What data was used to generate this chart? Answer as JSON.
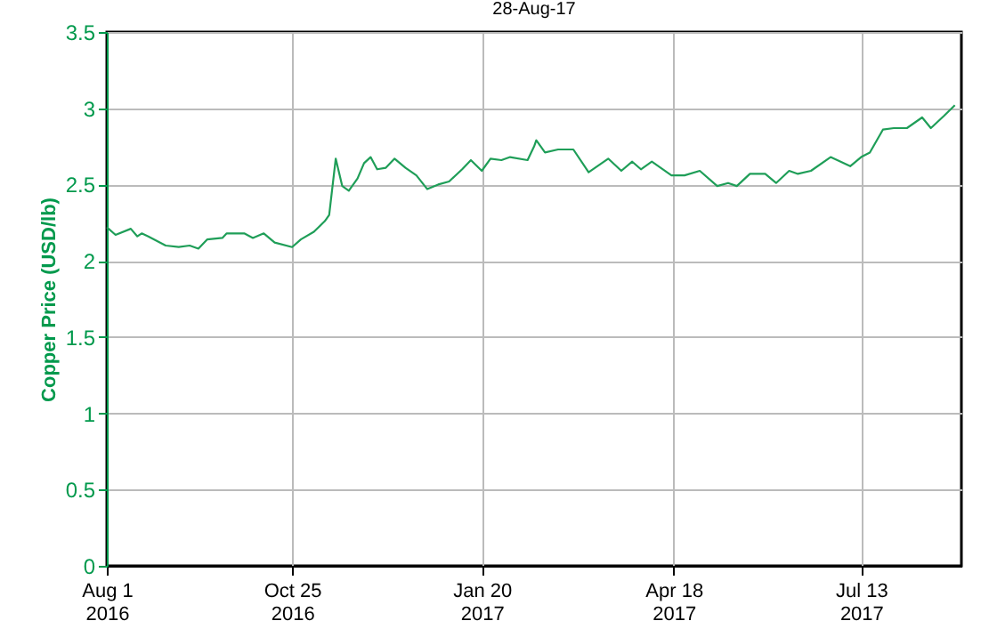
{
  "chart_data": {
    "type": "line",
    "title": "28-Aug-17",
    "ylabel": "Copper Price (USD/lb)",
    "x": [
      "2016-08-01",
      "2016-08-05",
      "2016-08-12",
      "2016-08-15",
      "2016-08-17",
      "2016-08-20",
      "2016-08-28",
      "2016-09-03",
      "2016-09-08",
      "2016-09-12",
      "2016-09-16",
      "2016-09-23",
      "2016-09-25",
      "2016-10-03",
      "2016-10-07",
      "2016-10-12",
      "2016-10-17",
      "2016-10-25",
      "2016-10-29",
      "2016-11-04",
      "2016-11-09",
      "2016-11-11",
      "2016-11-14",
      "2016-11-17",
      "2016-11-20",
      "2016-11-24",
      "2016-11-27",
      "2016-11-30",
      "2016-12-03",
      "2016-12-07",
      "2016-12-11",
      "2016-12-16",
      "2016-12-21",
      "2016-12-26",
      "2016-12-31",
      "2017-01-05",
      "2017-01-11",
      "2017-01-15",
      "2017-01-20",
      "2017-01-24",
      "2017-01-29",
      "2017-02-02",
      "2017-02-10",
      "2017-02-13",
      "2017-02-14",
      "2017-02-18",
      "2017-02-24",
      "2017-03-03",
      "2017-03-10",
      "2017-03-19",
      "2017-03-25",
      "2017-03-30",
      "2017-04-03",
      "2017-04-08",
      "2017-04-17",
      "2017-04-23",
      "2017-04-30",
      "2017-05-08",
      "2017-05-13",
      "2017-05-17",
      "2017-05-23",
      "2017-05-30",
      "2017-06-04",
      "2017-06-10",
      "2017-06-14",
      "2017-06-20",
      "2017-06-29",
      "2017-07-08",
      "2017-07-13",
      "2017-07-17",
      "2017-07-23",
      "2017-07-28",
      "2017-08-03",
      "2017-08-10",
      "2017-08-14",
      "2017-08-20",
      "2017-08-25"
    ],
    "series": [
      {
        "color": "#1f9e58",
        "values": [
          2.22,
          2.17,
          2.21,
          2.16,
          2.18,
          2.16,
          2.1,
          2.09,
          2.1,
          2.08,
          2.14,
          2.15,
          2.18,
          2.18,
          2.15,
          2.18,
          2.12,
          2.09,
          2.14,
          2.19,
          2.26,
          2.3,
          2.67,
          2.49,
          2.46,
          2.54,
          2.64,
          2.68,
          2.6,
          2.61,
          2.67,
          2.61,
          2.56,
          2.47,
          2.5,
          2.52,
          2.6,
          2.66,
          2.59,
          2.67,
          2.66,
          2.68,
          2.66,
          2.75,
          2.79,
          2.71,
          2.73,
          2.73,
          2.58,
          2.67,
          2.59,
          2.65,
          2.6,
          2.65,
          2.56,
          2.56,
          2.59,
          2.49,
          2.51,
          2.49,
          2.57,
          2.57,
          2.51,
          2.59,
          2.57,
          2.59,
          2.68,
          2.62,
          2.68,
          2.71,
          2.86,
          2.87,
          2.87,
          2.94,
          2.87,
          2.95,
          3.02
        ]
      }
    ],
    "xlim": [
      "2016-08-01",
      "2017-08-28"
    ],
    "xticks": [
      {
        "value": "2016-08-01",
        "label": "Aug 1\n2016"
      },
      {
        "value": "2016-10-25",
        "label": "Oct 25\n2016"
      },
      {
        "value": "2017-01-20",
        "label": "Jan 20\n2017"
      },
      {
        "value": "2017-04-18",
        "label": "Apr 18\n2017"
      },
      {
        "value": "2017-07-13",
        "label": "Jul 13\n2017"
      }
    ],
    "ylim": [
      0,
      3.5
    ],
    "yticks": [
      0,
      0.5,
      1,
      1.5,
      2,
      2.5,
      3,
      3.5
    ],
    "grid": true,
    "legend": false,
    "marker": "none",
    "line_style": "solid"
  }
}
